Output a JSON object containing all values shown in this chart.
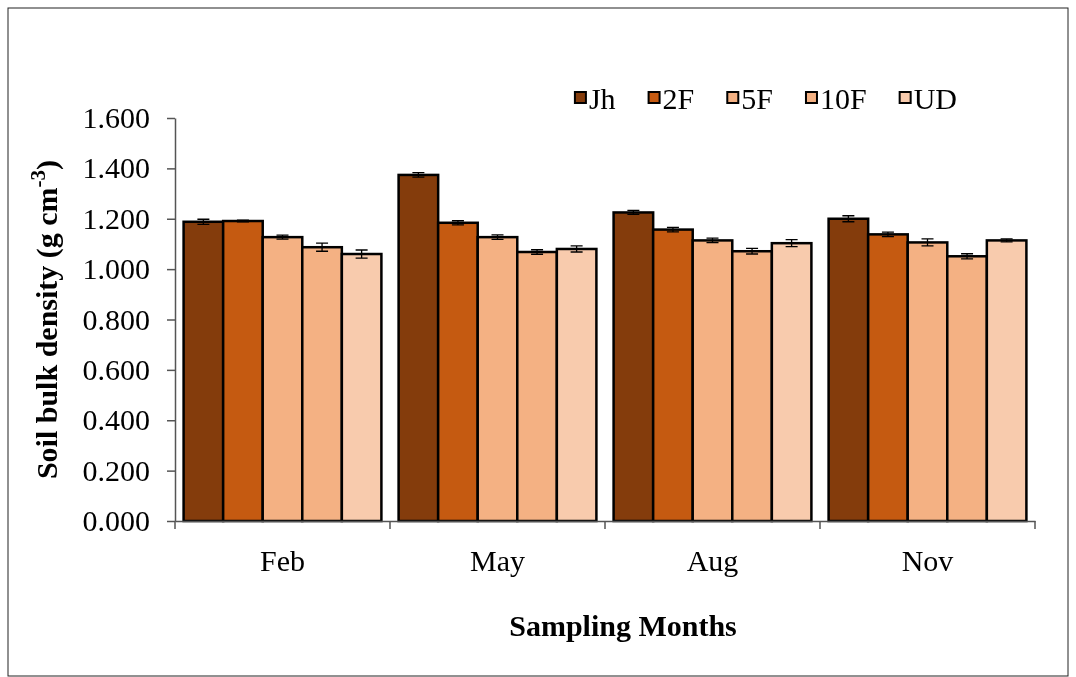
{
  "chart_data": {
    "type": "bar",
    "categories": [
      "Feb",
      "May",
      "Aug",
      "Nov"
    ],
    "series": [
      {
        "name": "Jh",
        "color": "#843c0c",
        "values": [
          1.188,
          1.374,
          1.225,
          1.2
        ],
        "errors": [
          0.01,
          0.009,
          0.008,
          0.012
        ]
      },
      {
        "name": "2F",
        "color": "#c55a11",
        "values": [
          1.191,
          1.184,
          1.157,
          1.138
        ],
        "errors": [
          0.003,
          0.008,
          0.009,
          0.009
        ]
      },
      {
        "name": "5F",
        "color": "#f4b183",
        "values": [
          1.127,
          1.127,
          1.114,
          1.106
        ],
        "errors": [
          0.008,
          0.009,
          0.009,
          0.014
        ]
      },
      {
        "name": "10F",
        "color": "#f4b183",
        "values": [
          1.087,
          1.068,
          1.071,
          1.051
        ],
        "errors": [
          0.016,
          0.009,
          0.011,
          0.01
        ]
      },
      {
        "name": "UD",
        "color": "#f8cbad",
        "values": [
          1.06,
          1.08,
          1.103,
          1.114
        ],
        "errors": [
          0.016,
          0.012,
          0.014,
          0.006
        ]
      }
    ],
    "xlabel": "Sampling Months",
    "ylabel": "Soil bulk density (g cm$^{-3}$)",
    "ylim": [
      0,
      1.6
    ],
    "yticks": [
      {
        "value": 0,
        "label": "0.000"
      },
      {
        "value": 0.2,
        "label": "0.200"
      },
      {
        "value": 0.4,
        "label": "0.400"
      },
      {
        "value": 0.6,
        "label": "0.600"
      },
      {
        "value": 0.8,
        "label": "0.800"
      },
      {
        "value": 1.0,
        "label": "1.000"
      },
      {
        "value": 1.2,
        "label": "1.200"
      },
      {
        "value": 1.4,
        "label": "1.400"
      },
      {
        "value": 1.6,
        "label": "1.600"
      }
    ],
    "legend": "top right"
  }
}
